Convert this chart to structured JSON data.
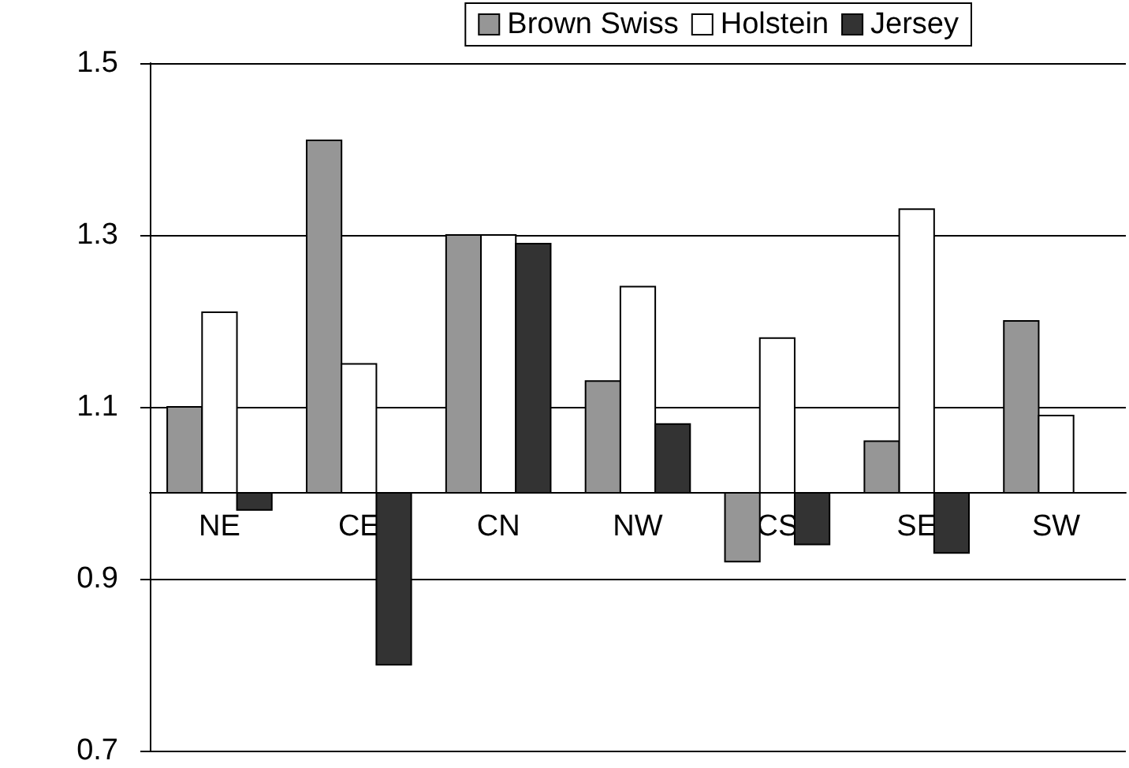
{
  "chart_data": {
    "type": "bar",
    "categories": [
      "NE",
      "CE",
      "CN",
      "NW",
      "CS",
      "SE",
      "SW"
    ],
    "series": [
      {
        "name": "Brown Swiss",
        "color": "#969696",
        "base": [
          1,
          1,
          1,
          1,
          1,
          1,
          1
        ],
        "values": [
          0.1,
          0.41,
          0.3,
          0.13,
          -0.08,
          0.06,
          0.2
        ]
      },
      {
        "name": "Holstein",
        "color": "#ffffff",
        "base": [
          1,
          1,
          1,
          1,
          1,
          1,
          1
        ],
        "values": [
          0.21,
          0.15,
          0.3,
          0.24,
          0.18,
          0.33,
          0.09
        ]
      },
      {
        "name": "Jersey",
        "color": "#333333",
        "base": [
          1,
          1,
          1,
          1,
          1,
          1,
          null
        ],
        "values": [
          -0.02,
          -0.2,
          0.29,
          0.08,
          -0.06,
          -0.07,
          null
        ]
      }
    ],
    "ylim": [
      0.7,
      1.5
    ],
    "yticks": [
      {
        "value": 0.7,
        "label": "0.7"
      },
      {
        "value": 0.9,
        "label": "0.9"
      },
      {
        "value": 1.1,
        "label": "1.1"
      },
      {
        "value": 1.3,
        "label": "1.3"
      },
      {
        "value": 1.5,
        "label": "1.5"
      }
    ],
    "grid": "y",
    "legend": "top right"
  }
}
